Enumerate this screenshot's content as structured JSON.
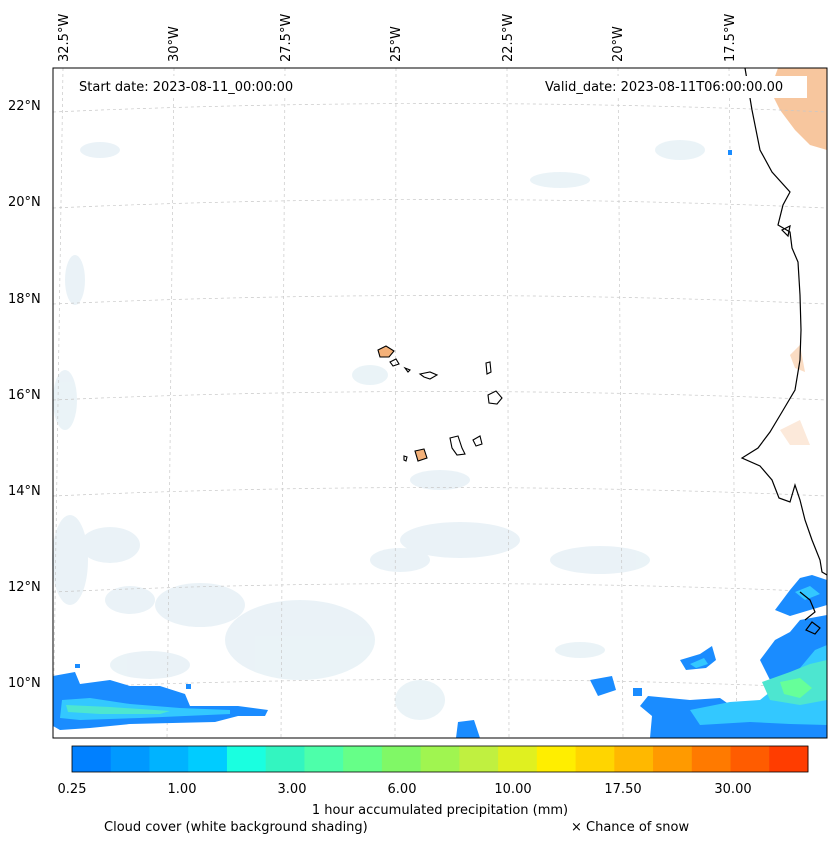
{
  "map": {
    "start_date_label": "Start date: 2023-08-11_00:00:00",
    "valid_date_label": "Valid_date: 2023-08-11T06:00:00.00",
    "lon_labels": [
      "32.5°W",
      "30°W",
      "27.5°W",
      "25°W",
      "22.5°W",
      "20°W",
      "17.5°W"
    ],
    "lat_labels": [
      "22°N",
      "20°N",
      "18°N",
      "16°N",
      "14°N",
      "12°N",
      "10°N"
    ],
    "colors": {
      "coast": "#000000",
      "grid": "#c8c8c8",
      "cloud_shading": "#d9e9f1",
      "land_heat": "#f3a86a"
    }
  },
  "colorbar": {
    "title": "1 hour accumulated precipitation (mm)",
    "tick_labels": [
      "0.25",
      "1.00",
      "3.00",
      "6.00",
      "10.00",
      "17.50",
      "30.00"
    ],
    "colors": [
      "#0080ff",
      "#0099ff",
      "#00b3ff",
      "#00ccff",
      "#1affe0",
      "#33f5c0",
      "#4dffaa",
      "#66ff88",
      "#80f866",
      "#a0f550",
      "#c0f040",
      "#e0f020",
      "#ffee00",
      "#ffd500",
      "#ffb800",
      "#ff9a00",
      "#ff7a00",
      "#ff5c00",
      "#ff3d00"
    ]
  },
  "footer": {
    "cloud_note": "Cloud cover (white background shading)",
    "snow_note": "× Chance of snow"
  }
}
